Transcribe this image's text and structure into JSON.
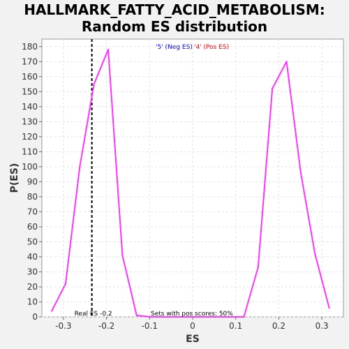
{
  "chart_data": {
    "type": "line",
    "title_line1": "HALLMARK_FATTY_ACID_METABOLISM:",
    "title_line2": "Random ES distribution",
    "xlabel": "ES",
    "ylabel": "P(ES)",
    "xlim": [
      -0.35,
      0.35
    ],
    "ylim": [
      0,
      185
    ],
    "x_ticks": [
      -0.3,
      -0.2,
      -0.1,
      0,
      0.1,
      0.2,
      0.3
    ],
    "x_tick_labels": [
      "-0.3",
      "-0.2",
      "-0.1",
      "0",
      "0.1",
      "0.2",
      "0.3"
    ],
    "y_ticks": [
      0,
      10,
      20,
      30,
      40,
      50,
      60,
      70,
      80,
      90,
      100,
      110,
      120,
      130,
      140,
      150,
      160,
      170,
      180
    ],
    "grid": true,
    "series": [
      {
        "color": "#ff33ff",
        "x": [
          -0.327,
          -0.295,
          -0.262,
          -0.229,
          -0.196,
          -0.163,
          -0.13,
          -0.098,
          0.119,
          0.152,
          0.185,
          0.218,
          0.251,
          0.284,
          0.317
        ],
        "y": [
          4,
          22,
          100,
          155,
          178,
          41,
          1,
          0,
          0,
          33,
          152,
          170,
          96,
          42,
          6
        ]
      }
    ],
    "real_es": -0.234,
    "real_es_label": "Real ES -0.2",
    "pos_scores_note": "Sets with pos scores: 50%",
    "legend_neg": "'5' (Neg ES)",
    "legend_pos": "'4' (Pos ES)",
    "legend_neg_color": "#0000ff",
    "legend_pos_color": "#ff0000"
  }
}
